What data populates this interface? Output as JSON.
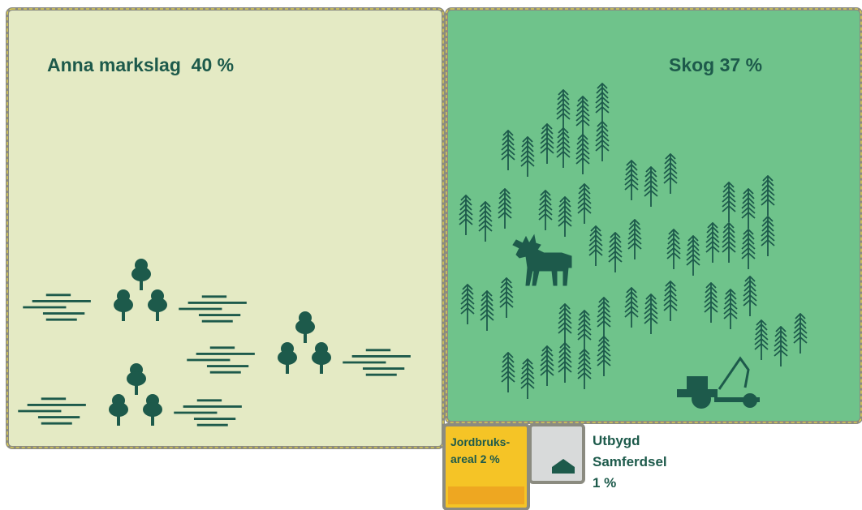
{
  "regions": [
    {
      "label": "Anna markslag  40 %"
    },
    {
      "label": "Skog 37 %"
    },
    {
      "lines": [
        "Jordbruks-",
        "areal 2 %"
      ]
    },
    {
      "lines": [
        "Utbygd",
        "Samferdsel",
        "1 %"
      ]
    }
  ]
}
